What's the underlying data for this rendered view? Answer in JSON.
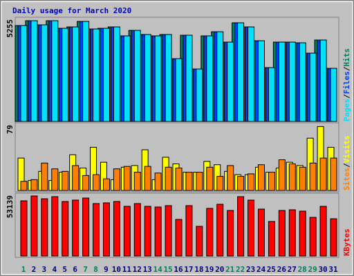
{
  "chart_data": [
    {
      "type": "bar",
      "title": "Daily usage for March 2020",
      "ylim": [
        0,
        5255
      ],
      "yticks": [
        5255
      ],
      "legend_separator": "/",
      "series": [
        {
          "name": "Hits",
          "color": "#00805c",
          "values": [
            4935,
            5184,
            4971,
            5184,
            4793,
            4864,
            5148,
            4758,
            4793,
            4864,
            4403,
            4687,
            4474,
            4403,
            4474,
            3231,
            4438,
            2698,
            4403,
            4616,
            4083,
            5077,
            4864,
            4154,
            2770,
            4083,
            4083,
            4048,
            3515,
            4190,
            2734
          ]
        },
        {
          "name": "Files",
          "color": "#0040ff",
          "values": [
            4935,
            5184,
            4971,
            5184,
            4793,
            4864,
            5148,
            4758,
            4793,
            4864,
            4403,
            4687,
            4474,
            4403,
            4474,
            3231,
            4438,
            2698,
            4403,
            4616,
            4083,
            5077,
            4864,
            4154,
            2770,
            4083,
            4083,
            4048,
            3515,
            4190,
            2734
          ]
        },
        {
          "name": "Pages",
          "color": "#00e0ff",
          "values": [
            4935,
            5184,
            4971,
            5184,
            4793,
            4864,
            5148,
            4758,
            4793,
            4864,
            4403,
            4687,
            4474,
            4403,
            4474,
            3231,
            4438,
            2698,
            4403,
            4616,
            4083,
            5077,
            4864,
            4154,
            2770,
            4083,
            4083,
            4048,
            3515,
            4190,
            2734
          ]
        }
      ]
    },
    {
      "type": "bar",
      "ylim": [
        0,
        79
      ],
      "yticks": [
        79
      ],
      "legend_separator": "/",
      "series": [
        {
          "name": "Visits",
          "color": "#ffff00",
          "values": [
            39,
            12,
            23,
            12,
            22,
            43,
            27,
            52,
            34,
            13,
            28,
            30,
            49,
            13,
            40,
            32,
            22,
            22,
            35,
            31,
            23,
            19,
            19,
            28,
            22,
            27,
            34,
            30,
            63,
            77,
            52
          ]
        },
        {
          "name": "Sites",
          "color": "#ff8000",
          "values": [
            11,
            13,
            33,
            26,
            23,
            30,
            18,
            19,
            14,
            26,
            29,
            22,
            29,
            21,
            28,
            27,
            22,
            22,
            28,
            17,
            30,
            17,
            20,
            31,
            22,
            37,
            32,
            28,
            33,
            39,
            39
          ]
        }
      ]
    },
    {
      "type": "bar",
      "ylim": [
        0,
        53139
      ],
      "yticks": [
        53139
      ],
      "categories": [
        "1",
        "2",
        "3",
        "4",
        "5",
        "6",
        "7",
        "8",
        "9",
        "10",
        "11",
        "12",
        "13",
        "14",
        "15",
        "16",
        "17",
        "18",
        "19",
        "20",
        "21",
        "22",
        "23",
        "24",
        "25",
        "26",
        "27",
        "28",
        "29",
        "30",
        "31"
      ],
      "label_colors": [
        "#00805c",
        "#000080",
        "#000080",
        "#000080",
        "#000080",
        "#000080",
        "#00805c",
        "#00805c",
        "#000080",
        "#000080",
        "#000080",
        "#000080",
        "#000080",
        "#00805c",
        "#00805c",
        "#000080",
        "#000080",
        "#000080",
        "#000080",
        "#000080",
        "#00805c",
        "#00805c",
        "#000080",
        "#000080",
        "#000080",
        "#000080",
        "#000080",
        "#00805c",
        "#00805c",
        "#000080",
        "#000080"
      ],
      "series": [
        {
          "name": "KBytes",
          "color": "#ff0000",
          "values": [
            48308,
            52535,
            50120,
            51930,
            47704,
            48912,
            50724,
            45893,
            46497,
            47704,
            43477,
            45893,
            43477,
            42874,
            44081,
            32004,
            44081,
            25966,
            41666,
            45289,
            39854,
            51930,
            48912,
            41062,
            30193,
            39854,
            40458,
            39251,
            33815,
            43477,
            32608
          ]
        }
      ]
    }
  ]
}
